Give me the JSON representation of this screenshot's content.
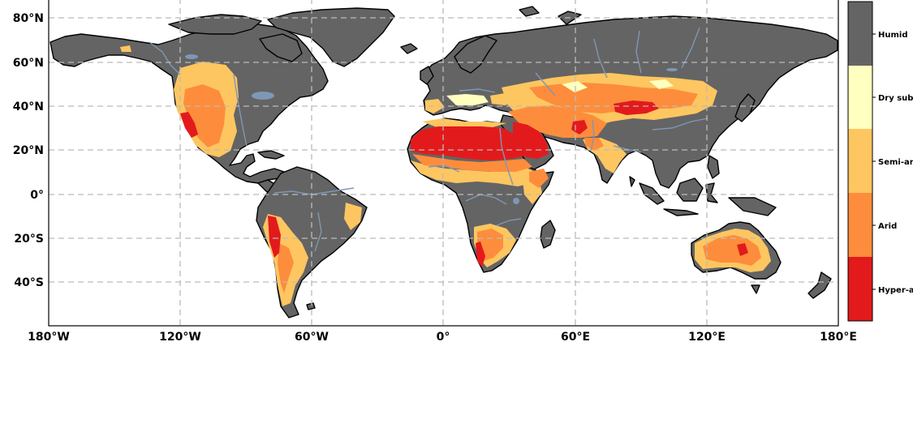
{
  "map": {
    "lat_labels": [
      "80°N",
      "60°N",
      "40°N",
      "20°N",
      "0°",
      "20°S",
      "40°S"
    ],
    "lon_labels": [
      "180°W",
      "120°W",
      "60°W",
      "0°",
      "60°E",
      "120°E",
      "180°E"
    ],
    "ocean_color": "#ffffff",
    "grid_color": "#bbbbbb",
    "river_color": "#7f97b5",
    "gridlines": "dashed"
  },
  "legend": {
    "placement": "right colorbar",
    "classes": [
      {
        "label": "Humid",
        "color": "#646464"
      },
      {
        "label": "Dry sub",
        "color": "#ffffbf"
      },
      {
        "label": "Semi-ar",
        "color": "#fec660"
      },
      {
        "label": "Arid",
        "color": "#fd8d3c"
      },
      {
        "label": "Hyper-a",
        "color": "#e31a1c"
      }
    ]
  }
}
